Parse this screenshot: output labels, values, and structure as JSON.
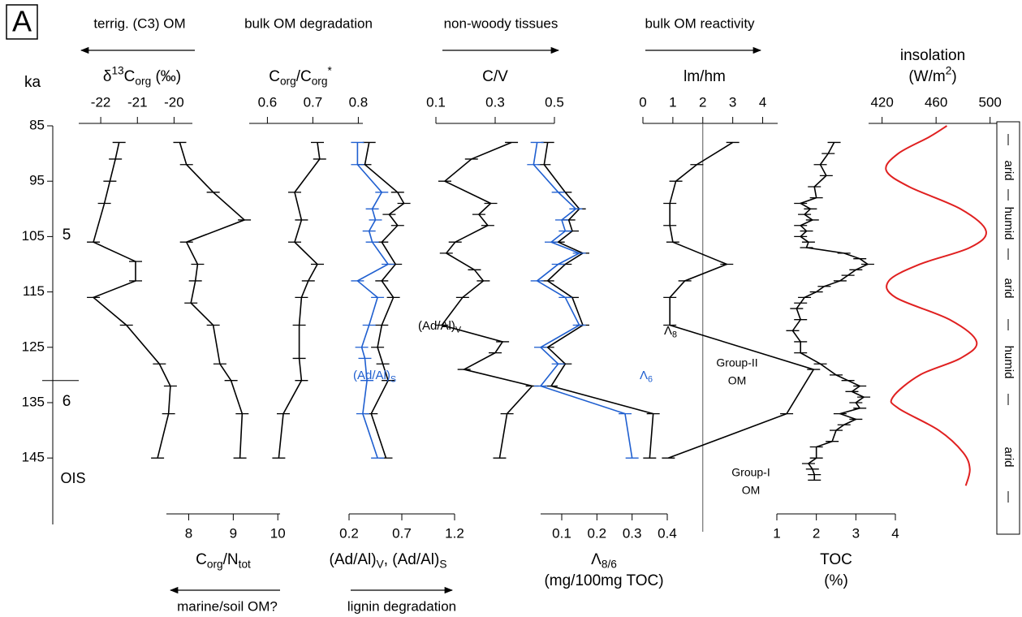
{
  "figure": {
    "panel_label": "A",
    "y_title": "ka",
    "ylim": [
      85,
      157
    ],
    "yticks": [
      85,
      95,
      105,
      115,
      125,
      135,
      145
    ],
    "stages": {
      "title": "OIS",
      "labels": [
        "5",
        "6"
      ],
      "boundary": 131
    },
    "climate": [
      "arid",
      "humid",
      "arid",
      "humid",
      "arid"
    ]
  },
  "chart_data": [
    {
      "type": "line",
      "xaxis": "top",
      "title": [
        [
          [
            "δ",
            ""
          ],
          [
            "13",
            "sup"
          ],
          [
            "C",
            ""
          ],
          [
            "org",
            "sub"
          ],
          [
            " (‰)",
            ""
          ]
        ]
      ],
      "header": {
        "text": "terrig. (C3) OM",
        "arrow": "left"
      },
      "xlim": [
        -22.6,
        -19.5
      ],
      "xticks": [
        -22,
        -21,
        -20
      ],
      "series": [
        {
          "color": "#000000",
          "marker": "bar",
          "ka": [
            88,
            91,
            95,
            99,
            106,
            109.5,
            113,
            116,
            121,
            128,
            132,
            137,
            145
          ],
          "values": [
            -21.5,
            -21.6,
            -21.75,
            -21.9,
            -22.2,
            -21.05,
            -21.05,
            -22.2,
            -21.3,
            -20.4,
            -20.1,
            -20.15,
            -20.45
          ]
        }
      ]
    },
    {
      "type": "line",
      "xaxis": "bottom",
      "title": [
        [
          [
            "C",
            ""
          ],
          [
            "org",
            "sub"
          ],
          [
            "/N",
            ""
          ],
          [
            "tot",
            "sub"
          ]
        ]
      ],
      "header": {
        "text": "marine/soil OM?",
        "arrow": "left"
      },
      "xlim": [
        7.5,
        10.05
      ],
      "xticks": [
        8,
        9,
        10
      ],
      "series": [
        {
          "color": "#000000",
          "marker": "bar",
          "ka": [
            88,
            92,
            97,
            102,
            106,
            110,
            113,
            117,
            121,
            128,
            131,
            137,
            145
          ],
          "values": [
            7.8,
            7.95,
            8.55,
            9.25,
            7.95,
            8.2,
            8.15,
            8.05,
            8.55,
            8.7,
            8.95,
            9.2,
            9.15
          ]
        }
      ]
    },
    {
      "type": "line",
      "xaxis": "top",
      "title": [
        [
          [
            "C",
            ""
          ],
          [
            "org",
            "sub"
          ],
          [
            "/C",
            ""
          ],
          [
            "org",
            "sub"
          ],
          [
            "*",
            "sup"
          ]
        ]
      ],
      "header": {
        "text": "bulk OM degradation",
        "arrow": "none"
      },
      "xlim": [
        0.56,
        0.81
      ],
      "xticks": [
        0.6,
        0.7,
        0.8
      ],
      "series": [
        {
          "color": "#000000",
          "marker": "bar",
          "ka": [
            88,
            91,
            97,
            102,
            106,
            110,
            113,
            116,
            121,
            127,
            131,
            137,
            145
          ],
          "values": [
            0.71,
            0.715,
            0.66,
            0.675,
            0.66,
            0.71,
            0.69,
            0.675,
            0.67,
            0.67,
            0.675,
            0.635,
            0.625
          ]
        }
      ]
    },
    {
      "type": "line",
      "xaxis": "bottom",
      "title": [
        [
          [
            "(Ad/Al)",
            ""
          ],
          [
            "V",
            "sub"
          ],
          [
            ", (Ad/Al)",
            ""
          ],
          [
            "S",
            "sub"
          ]
        ]
      ],
      "header": {
        "text": "lignin degradation",
        "arrow": "right"
      },
      "xlim": [
        0.2,
        1.2
      ],
      "xticks": [
        0.2,
        0.7,
        1.2
      ],
      "series": [
        {
          "name": [
            [
              "(Ad/Al)",
              ""
            ],
            [
              "V",
              "sub"
            ]
          ],
          "color": "#000000",
          "marker": "bar",
          "ka": [
            88,
            92,
            97,
            99,
            101,
            103,
            106,
            110,
            113,
            116,
            121,
            125,
            128,
            131,
            137,
            145
          ],
          "values": [
            0.39,
            0.35,
            0.66,
            0.72,
            0.58,
            0.66,
            0.51,
            0.64,
            0.51,
            0.62,
            0.51,
            0.47,
            0.52,
            0.57,
            0.41,
            0.55
          ]
        },
        {
          "name": [
            [
              "(Ad/Al)",
              ""
            ],
            [
              "S",
              "sub"
            ]
          ],
          "color": "#1f5fd0",
          "marker": "bar",
          "ka": [
            88,
            92,
            97,
            100,
            102,
            104,
            106,
            110,
            113,
            116,
            121,
            125,
            127,
            131,
            137,
            145
          ],
          "values": [
            0.28,
            0.28,
            0.51,
            0.42,
            0.45,
            0.39,
            0.42,
            0.57,
            0.28,
            0.47,
            0.39,
            0.32,
            0.35,
            0.37,
            0.33,
            0.47
          ]
        }
      ]
    },
    {
      "type": "line",
      "xaxis": "top",
      "title": [
        [
          [
            "C/V",
            ""
          ]
        ]
      ],
      "header": {
        "text": "non-woody tissues",
        "arrow": "right"
      },
      "xlim": [
        0.1,
        0.5
      ],
      "xticks": [
        0.1,
        0.3,
        0.5
      ],
      "series": [
        {
          "color": "#000000",
          "marker": "bar",
          "ka": [
            88,
            91,
            95,
            99,
            101,
            103,
            106,
            108,
            111,
            113,
            116,
            121,
            124,
            126,
            129,
            132,
            137,
            145
          ],
          "values": [
            0.355,
            0.22,
            0.13,
            0.285,
            0.245,
            0.275,
            0.165,
            0.135,
            0.23,
            0.26,
            0.19,
            0.12,
            0.325,
            0.3,
            0.195,
            0.425,
            0.34,
            0.315
          ]
        }
      ]
    },
    {
      "type": "line",
      "xaxis": "bottom",
      "title": [
        [
          [
            "Λ",
            ""
          ],
          [
            "8/6",
            "sub"
          ]
        ],
        [
          [
            "(mg/100mg TOC)",
            ""
          ]
        ]
      ],
      "xlim": [
        0.04,
        0.4
      ],
      "xticks": [
        0.1,
        0.2,
        0.3,
        0.4
      ],
      "series": [
        {
          "name": [
            [
              "Λ",
              ""
            ],
            [
              "8",
              "sub"
            ]
          ],
          "color": "#000000",
          "marker": "bar",
          "ka": [
            88,
            92,
            97,
            100,
            102,
            104,
            106,
            108,
            110,
            113,
            116,
            121,
            125,
            128,
            132,
            137,
            145
          ],
          "values": [
            0.06,
            0.05,
            0.11,
            0.15,
            0.12,
            0.13,
            0.09,
            0.16,
            0.11,
            0.06,
            0.13,
            0.16,
            0.06,
            0.11,
            0.07,
            0.36,
            0.35
          ]
        },
        {
          "name": [
            [
              "Λ",
              ""
            ],
            [
              "6",
              "sub"
            ]
          ],
          "color": "#1f5fd0",
          "marker": "bar",
          "ka": [
            88,
            92,
            97,
            100,
            102,
            104,
            106,
            108,
            110,
            113,
            116,
            121,
            125,
            128,
            132,
            137,
            145
          ],
          "values": [
            0.03,
            0.02,
            0.09,
            0.14,
            0.1,
            0.11,
            0.07,
            0.15,
            0.09,
            0.03,
            0.11,
            0.15,
            0.04,
            0.09,
            0.04,
            0.28,
            0.3
          ]
        }
      ]
    },
    {
      "type": "line",
      "xaxis": "top",
      "title": [
        [
          [
            "lm/hm",
            ""
          ]
        ]
      ],
      "header": {
        "text": "bulk OM reactivity",
        "arrow": "right"
      },
      "xlim": [
        0,
        4.5
      ],
      "xticks": [
        0,
        1,
        2,
        3,
        4
      ],
      "refline": 2,
      "annotations": [
        [
          "Group-II",
          "OM"
        ],
        [
          "Group-I",
          "OM"
        ]
      ],
      "series": [
        {
          "color": "#000000",
          "marker": "bar",
          "ka": [
            88,
            92,
            95,
            99,
            103,
            106,
            110,
            113,
            116,
            121,
            129,
            137,
            145
          ],
          "values": [
            3.0,
            1.8,
            1.1,
            0.9,
            0.9,
            1.0,
            2.8,
            1.4,
            0.9,
            0.9,
            5.7,
            4.8,
            0.85
          ]
        }
      ]
    },
    {
      "type": "line",
      "xaxis": "bottom",
      "title": [
        [
          [
            "TOC",
            ""
          ]
        ],
        [
          [
            "(%)",
            ""
          ]
        ]
      ],
      "xlim": [
        1,
        4
      ],
      "xticks": [
        1,
        2,
        3,
        4
      ],
      "series": [
        {
          "color": "#000000",
          "marker": "bar",
          "ka": [
            88,
            90,
            92,
            94,
            96,
            98,
            99,
            100,
            101,
            102,
            103,
            104,
            105,
            106,
            107,
            108,
            109,
            110,
            111,
            112,
            113,
            114,
            115,
            116,
            117,
            118,
            120,
            122,
            124,
            126,
            128,
            130,
            131,
            132,
            133,
            134,
            135,
            136,
            137,
            138,
            139,
            140,
            142,
            143,
            145,
            146,
            147,
            148,
            149
          ],
          "values": [
            2.45,
            2.3,
            2.1,
            2.25,
            1.95,
            2.0,
            1.6,
            1.85,
            1.7,
            1.9,
            1.6,
            1.75,
            1.6,
            1.8,
            1.75,
            2.7,
            3.1,
            3.3,
            3.0,
            2.8,
            2.6,
            2.2,
            2.0,
            1.7,
            1.6,
            1.5,
            1.6,
            1.4,
            1.6,
            1.6,
            2.1,
            2.5,
            2.8,
            3.1,
            2.9,
            3.2,
            3.0,
            3.1,
            2.6,
            3.0,
            2.7,
            2.5,
            2.4,
            2.0,
            2.0,
            1.8,
            1.9,
            1.95,
            1.95
          ]
        }
      ]
    },
    {
      "type": "line",
      "xaxis": "top",
      "title": [
        [
          [
            "insolation",
            ""
          ]
        ],
        [
          [
            "(W/m",
            ""
          ],
          [
            "2",
            "sup"
          ],
          [
            ")",
            ""
          ]
        ]
      ],
      "xlim": [
        410,
        505
      ],
      "xticks": [
        420,
        460,
        500
      ],
      "series": [
        {
          "color": "#e02020",
          "marker": "none",
          "smooth": true,
          "ka": [
            85,
            87,
            90,
            93,
            96,
            100,
            104,
            107,
            110,
            113,
            116,
            120,
            124,
            127,
            130,
            134,
            136,
            140,
            144,
            147,
            150
          ],
          "values": [
            468,
            455,
            432,
            423,
            440,
            478,
            497,
            485,
            448,
            425,
            430,
            470,
            490,
            478,
            448,
            428,
            432,
            462,
            480,
            485,
            482
          ]
        }
      ]
    }
  ]
}
